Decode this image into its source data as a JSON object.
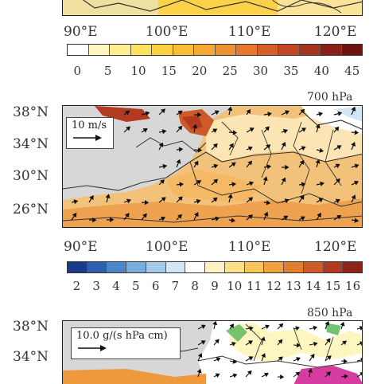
{
  "panel1": {
    "lon_ticks": [
      "90°E",
      "100°E",
      "110°E",
      "120°E"
    ],
    "colorbar": {
      "colors": [
        "#ffffff",
        "#fff7c0",
        "#ffee90",
        "#ffe160",
        "#fdd040",
        "#f9bd36",
        "#f5a832",
        "#ef9030",
        "#e6782c",
        "#d65f28",
        "#c24624",
        "#a83220",
        "#8c2018",
        "#6e1410"
      ],
      "labels": [
        "0",
        "5",
        "10",
        "15",
        "20",
        "25",
        "30",
        "35",
        "40",
        "45"
      ]
    }
  },
  "panel2": {
    "pressure_level": "700 hPa",
    "lat_ticks": [
      "38°N",
      "34°N",
      "30°N",
      "26°N"
    ],
    "lon_ticks": [
      "90°E",
      "100°E",
      "110°E",
      "120°E"
    ],
    "wind_reference": "10 m/s",
    "colorbar": {
      "colors": [
        "#1a3a8a",
        "#2d5fae",
        "#4b86c8",
        "#78acdb",
        "#a6cbe8",
        "#d4e6f3",
        "#ffffff",
        "#fff2c4",
        "#fde18a",
        "#f7c55a",
        "#efa23e",
        "#e27e30",
        "#cd5a28",
        "#b23a20",
        "#8c2218"
      ],
      "labels": [
        "2",
        "3",
        "4",
        "5",
        "6",
        "7",
        "8",
        "9",
        "10",
        "11",
        "12",
        "13",
        "14",
        "15",
        "16"
      ]
    }
  },
  "panel3": {
    "pressure_level": "850 hPa",
    "lat_ticks": [
      "38°N",
      "34°N"
    ],
    "flux_reference": "10.0 g/(s hPa cm)"
  }
}
